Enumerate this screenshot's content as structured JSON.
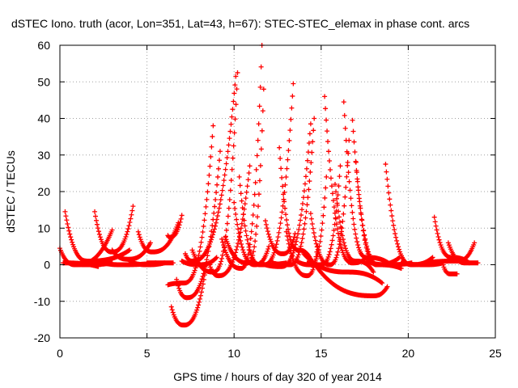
{
  "chart_data": {
    "type": "scatter",
    "title": "dSTEC Iono. truth (acor, Lon=351, Lat=43, h=67): STEC-STEC_elemax in phase cont. arcs",
    "xlabel": "GPS time / hours of day 320 of year 2014",
    "ylabel": "dSTEC  / TECUs",
    "xlim": [
      0,
      25
    ],
    "ylim": [
      -20,
      60
    ],
    "xticks": [
      "0",
      "5",
      "10",
      "15",
      "20",
      "25"
    ],
    "yticks": [
      "-20",
      "-10",
      "0",
      "10",
      "20",
      "30",
      "40",
      "50",
      "60"
    ],
    "grid": true,
    "marker": "plus",
    "color": "#ff0000",
    "arcs": [
      {
        "start": [
          0.0,
          4.5
        ],
        "min": [
          0.9,
          0.0
        ],
        "end": [
          3.0,
          9.5
        ]
      },
      {
        "start": [
          0.2,
          0.5
        ],
        "min": [
          0.2,
          0.5
        ],
        "end": [
          2.2,
          -0.5
        ]
      },
      {
        "start": [
          0.3,
          14.5
        ],
        "min": [
          1.6,
          1.0
        ],
        "end": [
          4.0,
          4.0
        ]
      },
      {
        "start": [
          0.5,
          0.5
        ],
        "min": [
          1.5,
          0.0
        ],
        "end": [
          3.0,
          0.5
        ]
      },
      {
        "start": [
          2.0,
          14.5
        ],
        "min": [
          3.0,
          3.5
        ],
        "end": [
          4.2,
          16.0
        ]
      },
      {
        "start": [
          2.5,
          0.5
        ],
        "min": [
          3.5,
          0.0
        ],
        "end": [
          5.5,
          0.5
        ]
      },
      {
        "start": [
          3.0,
          4.0
        ],
        "min": [
          3.9,
          1.5
        ],
        "end": [
          5.2,
          6.0
        ]
      },
      {
        "start": [
          4.0,
          1.0
        ],
        "min": [
          5.0,
          0.0
        ],
        "end": [
          6.0,
          0.5
        ]
      },
      {
        "start": [
          4.5,
          9.0
        ],
        "min": [
          5.3,
          3.5
        ],
        "end": [
          6.8,
          11.5
        ]
      },
      {
        "start": [
          5.0,
          0.5
        ],
        "min": [
          5.5,
          0.5
        ],
        "end": [
          6.5,
          0.5
        ]
      },
      {
        "start": [
          6.2,
          8.0
        ],
        "min": [
          6.3,
          7.5
        ],
        "end": [
          7.0,
          13.5
        ]
      },
      {
        "start": [
          6.2,
          -5.5
        ],
        "min": [
          7.1,
          -5.0
        ],
        "end": [
          8.8,
          38.0
        ]
      },
      {
        "start": [
          6.4,
          -11.5
        ],
        "min": [
          7.1,
          -16.5
        ],
        "end": [
          8.4,
          0.0
        ]
      },
      {
        "start": [
          6.7,
          -4.0
        ],
        "min": [
          7.3,
          -9.0
        ],
        "end": [
          9.2,
          31.0
        ]
      },
      {
        "start": [
          7.0,
          1.0
        ],
        "min": [
          8.0,
          0.0
        ],
        "end": [
          9.0,
          2.0
        ]
      },
      {
        "start": [
          7.2,
          3.0
        ],
        "min": [
          7.6,
          1.0
        ],
        "end": [
          10.1,
          51.5
        ]
      },
      {
        "start": [
          7.6,
          4.0
        ],
        "min": [
          8.8,
          -2.0
        ],
        "end": [
          10.2,
          52.5
        ]
      },
      {
        "start": [
          8.6,
          0.0
        ],
        "min": [
          9.1,
          -3.0
        ],
        "end": [
          10.9,
          27.0
        ]
      },
      {
        "start": [
          9.3,
          7.0
        ],
        "min": [
          10.4,
          -1.0
        ],
        "end": [
          11.6,
          60.0
        ]
      },
      {
        "start": [
          9.5,
          7.5
        ],
        "min": [
          10.8,
          0.5
        ],
        "end": [
          11.7,
          48.0
        ]
      },
      {
        "start": [
          10.0,
          17.0
        ],
        "min": [
          11.2,
          0.0
        ],
        "end": [
          12.0,
          5.0
        ]
      },
      {
        "start": [
          10.3,
          24.0
        ],
        "min": [
          11.5,
          0.0
        ],
        "end": [
          13.0,
          0.5
        ]
      },
      {
        "start": [
          11.0,
          1.0
        ],
        "min": [
          11.7,
          0.0
        ],
        "end": [
          13.4,
          49.5
        ]
      },
      {
        "start": [
          11.5,
          0.5
        ],
        "min": [
          12.7,
          -0.5
        ],
        "end": [
          14.4,
          38.5
        ]
      },
      {
        "start": [
          11.8,
          12.0
        ],
        "min": [
          12.8,
          3.0
        ],
        "end": [
          13.5,
          8.5
        ]
      },
      {
        "start": [
          12.2,
          0.5
        ],
        "min": [
          13.2,
          0.0
        ],
        "end": [
          14.6,
          40.0
        ]
      },
      {
        "start": [
          12.6,
          32.0
        ],
        "min": [
          13.7,
          4.0
        ],
        "end": [
          14.5,
          0.5
        ]
      },
      {
        "start": [
          13.0,
          9.0
        ],
        "min": [
          14.2,
          -3.0
        ],
        "end": [
          14.8,
          5.0
        ]
      },
      {
        "start": [
          13.6,
          1.0
        ],
        "min": [
          14.4,
          0.0
        ],
        "end": [
          15.3,
          24.0
        ]
      },
      {
        "start": [
          14.2,
          0.5
        ],
        "min": [
          15.0,
          0.0
        ],
        "end": [
          16.1,
          27.0
        ]
      },
      {
        "start": [
          14.4,
          14.0
        ],
        "min": [
          15.5,
          0.0
        ],
        "end": [
          16.6,
          34.0
        ]
      },
      {
        "start": [
          15.2,
          46.0
        ],
        "min": [
          16.8,
          0.5
        ],
        "end": [
          17.5,
          1.5
        ]
      },
      {
        "start": [
          15.8,
          22.0
        ],
        "min": [
          17.0,
          1.0
        ],
        "end": [
          18.0,
          -2.0
        ]
      },
      {
        "start": [
          16.3,
          44.5
        ],
        "min": [
          17.6,
          2.0
        ],
        "end": [
          19.0,
          0.0
        ]
      },
      {
        "start": [
          16.8,
          39.5
        ],
        "min": [
          18.3,
          0.0
        ],
        "end": [
          19.6,
          -1.0
        ]
      },
      {
        "start": [
          17.0,
          28.0
        ],
        "min": [
          18.2,
          0.0
        ],
        "end": [
          19.5,
          2.0
        ]
      },
      {
        "start": [
          17.6,
          1.0
        ],
        "min": [
          18.8,
          0.0
        ],
        "end": [
          20.2,
          0.5
        ]
      },
      {
        "start": [
          18.7,
          27.5
        ],
        "min": [
          20.2,
          0.0
        ],
        "end": [
          21.4,
          2.0
        ]
      },
      {
        "start": [
          14.0,
          3.0
        ],
        "min": [
          16.5,
          -2.0
        ],
        "end": [
          18.5,
          -5.0
        ]
      },
      {
        "start": [
          14.5,
          1.0
        ],
        "min": [
          18.0,
          -8.5
        ],
        "end": [
          18.8,
          -6.0
        ]
      },
      {
        "start": [
          19.6,
          0.5
        ],
        "min": [
          21.0,
          0.0
        ],
        "end": [
          22.0,
          0.5
        ]
      },
      {
        "start": [
          21.5,
          13.0
        ],
        "min": [
          22.5,
          2.0
        ],
        "end": [
          23.5,
          0.5
        ]
      },
      {
        "start": [
          22.0,
          0.0
        ],
        "min": [
          22.4,
          -2.5
        ],
        "end": [
          22.8,
          -2.5
        ]
      },
      {
        "start": [
          22.3,
          6.0
        ],
        "min": [
          23.3,
          0.5
        ],
        "end": [
          24.0,
          0.5
        ]
      },
      {
        "start": [
          21.0,
          0.5
        ],
        "min": [
          22.8,
          1.0
        ],
        "end": [
          23.8,
          6.0
        ]
      }
    ]
  }
}
